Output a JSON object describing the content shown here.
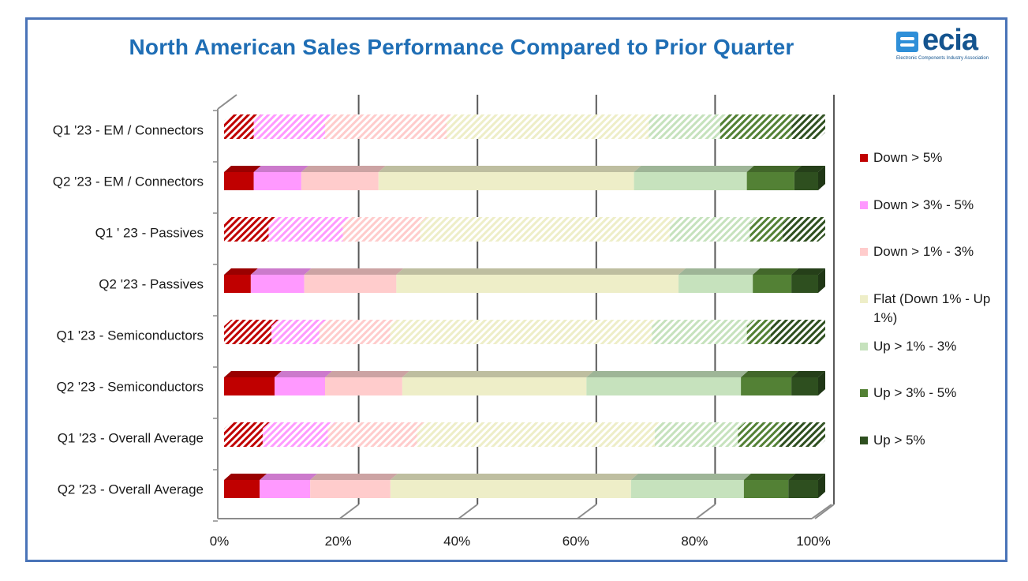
{
  "chart_data": {
    "type": "bar",
    "orientation": "horizontal",
    "stacked": "percent",
    "title": "North American Sales Performance Compared to Prior Quarter",
    "logo_text": "ecia",
    "logo_subtitle": "Electronic Components Industry Association",
    "categories": [
      "Q1 '23 - EM / Connectors",
      "Q2 '23 - EM / Connectors",
      "Q1 ' 23 - Passives",
      "Q2 '23 - Passives",
      "Q1 '23 - Semiconductors",
      "Q2 '23 - Semiconductors",
      "Q1 '23 - Overall Average",
      "Q2 '23 - Overall Average"
    ],
    "patterned_categories": [
      true,
      false,
      true,
      false,
      true,
      false,
      true,
      false
    ],
    "series": [
      {
        "name": "Down > 5%",
        "color": "#c00000",
        "values": [
          5,
          5,
          7.5,
          4.5,
          8,
          8.5,
          6.5,
          6
        ]
      },
      {
        "name": "Down > 3% - 5%",
        "color": "#ff99ff",
        "values": [
          12,
          8,
          12.5,
          9,
          8,
          8.5,
          11,
          8.5
        ]
      },
      {
        "name": "Down > 1% - 3%",
        "color": "#ffcccc",
        "values": [
          20.5,
          13,
          13,
          15.5,
          12,
          13,
          15,
          13.5
        ]
      },
      {
        "name": "Flat (Down 1% - Up 1%)",
        "color": "#eeeec8",
        "values": [
          34,
          43,
          42,
          47.5,
          44,
          31,
          40,
          40.5
        ]
      },
      {
        "name": "Up > 1% - 3%",
        "color": "#c6e2bd",
        "values": [
          12,
          19,
          13.5,
          12.5,
          16,
          26,
          14,
          19
        ]
      },
      {
        "name": "Up > 3% - 5%",
        "color": "#538135",
        "values": [
          12,
          8,
          5.5,
          6.5,
          4,
          8.5,
          7,
          7.5
        ]
      },
      {
        "name": "Up > 5%",
        "color": "#2e4f1f",
        "values": [
          4.5,
          4,
          6,
          4.5,
          8,
          4.5,
          6.5,
          5
        ]
      }
    ],
    "xlim": [
      0,
      100
    ],
    "x_ticks": [
      "0%",
      "20%",
      "40%",
      "60%",
      "80%",
      "100%"
    ],
    "grid": true,
    "legend_position": "right"
  }
}
